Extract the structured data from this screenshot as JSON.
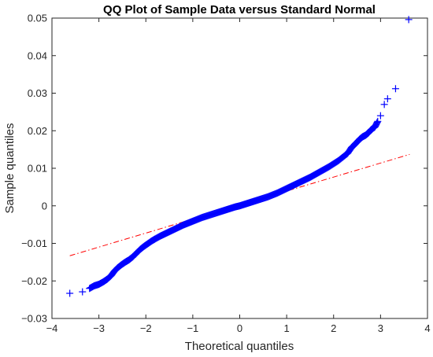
{
  "chart_data": {
    "type": "scatter",
    "title": "QQ Plot of Sample Data versus Standard Normal",
    "xlabel": "Theoretical quantiles",
    "ylabel": "Sample quantiles",
    "xlim": [
      -4,
      4
    ],
    "ylim": [
      -0.03,
      0.05
    ],
    "xticks": [
      -4,
      -3,
      -2,
      -1,
      0,
      1,
      2,
      3,
      4
    ],
    "xtick_labels": [
      "−4",
      "−3",
      "−2",
      "−1",
      "0",
      "1",
      "2",
      "3",
      "4"
    ],
    "yticks": [
      -0.03,
      -0.02,
      -0.01,
      0,
      0.01,
      0.02,
      0.03,
      0.04,
      0.05
    ],
    "ytick_labels": [
      "−0.03",
      "−0.02",
      "−0.01",
      "0",
      "0.01",
      "0.02",
      "0.03",
      "0.04",
      "0.05"
    ],
    "grid": false,
    "marker": "+",
    "series": [
      {
        "color": "#0000ff",
        "points": [
          [
            -3.62,
            -0.0233
          ],
          [
            -3.35,
            -0.0229
          ],
          [
            -3.2,
            -0.022
          ],
          [
            -3.1,
            -0.0213
          ],
          [
            -3.0,
            -0.0209
          ],
          [
            -2.9,
            -0.0202
          ],
          [
            -2.82,
            -0.0195
          ],
          [
            -2.74,
            -0.0186
          ],
          [
            -2.67,
            -0.0174
          ],
          [
            -2.6,
            -0.0165
          ],
          [
            -2.52,
            -0.0157
          ],
          [
            -2.44,
            -0.015
          ],
          [
            -2.36,
            -0.0144
          ],
          [
            -2.28,
            -0.0136
          ],
          [
            -2.2,
            -0.0126
          ],
          [
            -2.12,
            -0.0116
          ],
          [
            -2.04,
            -0.0108
          ],
          [
            -1.96,
            -0.0101
          ],
          [
            -1.88,
            -0.0094
          ],
          [
            -1.8,
            -0.0088
          ],
          [
            -1.7,
            -0.0081
          ],
          [
            -1.6,
            -0.0075
          ],
          [
            -1.5,
            -0.0069
          ],
          [
            -1.4,
            -0.0063
          ],
          [
            -1.3,
            -0.0057
          ],
          [
            -1.2,
            -0.0051
          ],
          [
            -1.1,
            -0.0046
          ],
          [
            -1.0,
            -0.0041
          ],
          [
            -0.9,
            -0.0036
          ],
          [
            -0.8,
            -0.0031
          ],
          [
            -0.7,
            -0.0027
          ],
          [
            -0.6,
            -0.0023
          ],
          [
            -0.5,
            -0.0019
          ],
          [
            -0.4,
            -0.0015
          ],
          [
            -0.3,
            -0.0011
          ],
          [
            -0.2,
            -0.0007
          ],
          [
            -0.1,
            -0.0003
          ],
          [
            0.0,
            0.0
          ],
          [
            0.1,
            0.0004
          ],
          [
            0.2,
            0.0008
          ],
          [
            0.3,
            0.0012
          ],
          [
            0.4,
            0.0016
          ],
          [
            0.5,
            0.002
          ],
          [
            0.6,
            0.0024
          ],
          [
            0.7,
            0.0029
          ],
          [
            0.8,
            0.0034
          ],
          [
            0.9,
            0.004
          ],
          [
            1.0,
            0.0046
          ],
          [
            1.1,
            0.0052
          ],
          [
            1.2,
            0.0058
          ],
          [
            1.3,
            0.0064
          ],
          [
            1.4,
            0.007
          ],
          [
            1.5,
            0.0076
          ],
          [
            1.6,
            0.0083
          ],
          [
            1.7,
            0.009
          ],
          [
            1.8,
            0.0097
          ],
          [
            1.9,
            0.0104
          ],
          [
            2.0,
            0.0112
          ],
          [
            2.1,
            0.012
          ],
          [
            2.2,
            0.013
          ],
          [
            2.3,
            0.014
          ],
          [
            2.38,
            0.0155
          ],
          [
            2.44,
            0.0162
          ],
          [
            2.5,
            0.017
          ],
          [
            2.56,
            0.0178
          ],
          [
            2.62,
            0.0184
          ],
          [
            2.68,
            0.0188
          ],
          [
            2.74,
            0.0194
          ],
          [
            2.8,
            0.0203
          ],
          [
            2.88,
            0.021
          ],
          [
            2.94,
            0.0225
          ],
          [
            3.0,
            0.024
          ],
          [
            3.08,
            0.027
          ],
          [
            3.15,
            0.0285
          ],
          [
            3.32,
            0.0312
          ],
          [
            3.6,
            0.0496
          ]
        ]
      }
    ],
    "reference_line": {
      "style": "dash-dot",
      "color": "#ff0000",
      "points": [
        [
          -3.62,
          -0.0133
        ],
        [
          3.62,
          0.0137
        ]
      ]
    }
  }
}
